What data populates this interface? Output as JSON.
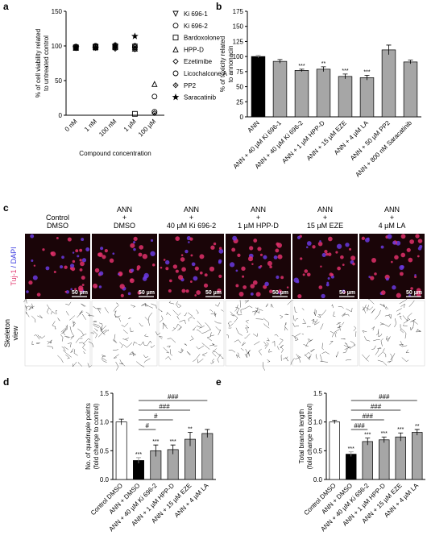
{
  "panel_labels": [
    "a",
    "b",
    "c",
    "d",
    "e"
  ],
  "chart_data": [
    {
      "type": "scatter",
      "xlabel": "Compound concentration",
      "ylabel": [
        "% of cell viability related",
        "to untreated control"
      ],
      "categories": [
        "0 nM",
        "1 nM",
        "100 nM",
        "1 µM",
        "100 µM"
      ],
      "ylim": [
        0,
        150
      ],
      "yticks": [
        0,
        50,
        100,
        150
      ],
      "series": [
        {
          "name": "Ki 696-1",
          "marker": "triangle-down",
          "color": "#000000",
          "values": [
            97,
            98,
            99,
            99,
            null
          ]
        },
        {
          "name": "Ki 696-2",
          "marker": "circle",
          "color": "#000000",
          "values": [
            99,
            100,
            101,
            100,
            27
          ]
        },
        {
          "name": "Bardoxolone",
          "marker": "square",
          "color": "#000000",
          "values": [
            98,
            99,
            98,
            2,
            null
          ]
        },
        {
          "name": "HPP-D",
          "marker": "triangle-up",
          "color": "#000000",
          "values": [
            97,
            98,
            100,
            96,
            45
          ]
        },
        {
          "name": "Ezetimibe",
          "marker": "diamond",
          "color": "#000000",
          "values": [
            98,
            97,
            96,
            95,
            null
          ]
        },
        {
          "name": "Licochalcone A",
          "marker": "circle",
          "color": "#000000",
          "values": [
            99,
            100,
            99,
            98,
            5
          ]
        },
        {
          "name": "PP2",
          "marker": "diamond-dot",
          "color": "#000000",
          "values": [
            97,
            99,
            98,
            97,
            3
          ]
        },
        {
          "name": "Saracatinib",
          "marker": "star",
          "color": "#000000",
          "values": [
            98,
            97,
            101,
            114,
            null
          ]
        }
      ]
    },
    {
      "type": "bar",
      "ylabel": [
        "% of toxicity related",
        "to annonacin"
      ],
      "categories": [
        "ANN",
        "ANN + 40 µM Ki 696-1",
        "ANN + 40 µM Ki 696-2",
        "ANN + 1 µM HPP-D",
        "ANN + 15 µM EZE",
        "ANN + 4 µM LA",
        "ANN + 50 µM PP2",
        "ANN + 800 nM Saracatinib"
      ],
      "values": [
        100,
        92,
        77,
        79,
        67,
        65,
        111,
        91
      ],
      "errors": [
        2,
        3,
        2,
        4,
        4,
        4,
        8,
        3
      ],
      "colors": [
        "#000000",
        "#a6a6a6",
        "#a6a6a6",
        "#a6a6a6",
        "#a6a6a6",
        "#a6a6a6",
        "#a6a6a6",
        "#a6a6a6"
      ],
      "significance": [
        null,
        null,
        "***",
        "**",
        "***",
        "***",
        null,
        null
      ],
      "ylim": [
        0,
        175
      ],
      "yticks": [
        0,
        25,
        50,
        75,
        100,
        125,
        150,
        175
      ]
    },
    {
      "type": "bar",
      "ylabel": [
        "No. of quadruple points",
        "(fold change to control)"
      ],
      "categories": [
        "Control DMSO",
        "ANN + DMSO",
        "ANN + 40 µM Ki 696-2",
        "ANN + 1 µM HPP-D",
        "ANN + 15 µM EZE",
        "ANN + 4 µM LA"
      ],
      "values": [
        1.0,
        0.33,
        0.5,
        0.52,
        0.7,
        0.8
      ],
      "errors": [
        0.05,
        0.05,
        0.1,
        0.08,
        0.12,
        0.07
      ],
      "colors": [
        "#ffffff",
        "#000000",
        "#a6a6a6",
        "#a6a6a6",
        "#a6a6a6",
        "#a6a6a6"
      ],
      "significance": [
        null,
        "***",
        "***",
        "***",
        "**",
        null
      ],
      "comparisons": [
        {
          "vs": [
            "ANN + DMSO",
            "ANN + 40 µM Ki 696-2"
          ],
          "label": "#"
        },
        {
          "vs": [
            "ANN + DMSO",
            "ANN + 1 µM HPP-D"
          ],
          "label": "#"
        },
        {
          "vs": [
            "ANN + DMSO",
            "ANN + 15 µM EZE"
          ],
          "label": "###"
        },
        {
          "vs": [
            "ANN + DMSO",
            "ANN + 4 µM LA"
          ],
          "label": "###"
        }
      ],
      "ylim": [
        0,
        1.5
      ],
      "yticks": [
        {
          "value": 0,
          "label": "0.0"
        },
        0.5,
        {
          "value": 1,
          "label": "1.0"
        },
        1.5
      ]
    },
    {
      "type": "bar",
      "ylabel": [
        "Total branch length",
        "(fold change to control)"
      ],
      "categories": [
        "Control DMSO",
        "ANN + DMSO",
        "ANN + 40 µM Ki 696-2",
        "ANN + 1 µM HPP-D",
        "ANN + 15 µM EZE",
        "ANN + 4 µM LA"
      ],
      "values": [
        1.0,
        0.44,
        0.66,
        0.69,
        0.74,
        0.82
      ],
      "errors": [
        0.03,
        0.04,
        0.06,
        0.05,
        0.07,
        0.05
      ],
      "colors": [
        "#ffffff",
        "#000000",
        "#a6a6a6",
        "#a6a6a6",
        "#a6a6a6",
        "#a6a6a6"
      ],
      "significance": [
        null,
        "***",
        "***",
        "***",
        "***",
        "**"
      ],
      "comparisons": [
        {
          "vs": [
            "ANN + DMSO",
            "ANN + 40 µM Ki 696-2"
          ],
          "label": "###"
        },
        {
          "vs": [
            "ANN + DMSO",
            "ANN + 1 µM HPP-D"
          ],
          "label": "###"
        },
        {
          "vs": [
            "ANN + DMSO",
            "ANN + 15 µM EZE"
          ],
          "label": "###"
        },
        {
          "vs": [
            "ANN + DMSO",
            "ANN + 4 µM LA"
          ],
          "label": "###"
        }
      ],
      "ylim": [
        0,
        1.5
      ],
      "yticks": [
        {
          "value": 0,
          "label": "0.0"
        },
        0.5,
        {
          "value": 1,
          "label": "1.0"
        },
        1.5
      ]
    }
  ],
  "micrographs": {
    "columns": [
      [
        "Control",
        "DMSO"
      ],
      [
        "ANN",
        "+",
        "DMSO"
      ],
      [
        "ANN",
        "+",
        "40 µM Ki 696-2"
      ],
      [
        "ANN",
        "+",
        "1 µM HPP-D"
      ],
      [
        "ANN",
        "+",
        "15 µM EZE"
      ],
      [
        "ANN",
        "+",
        "4 µM LA"
      ]
    ],
    "rows": [
      [
        "Tuj-1",
        "/ DAPI"
      ],
      [
        "Skeleton",
        "view"
      ]
    ],
    "scale_bar": "50 µm"
  }
}
